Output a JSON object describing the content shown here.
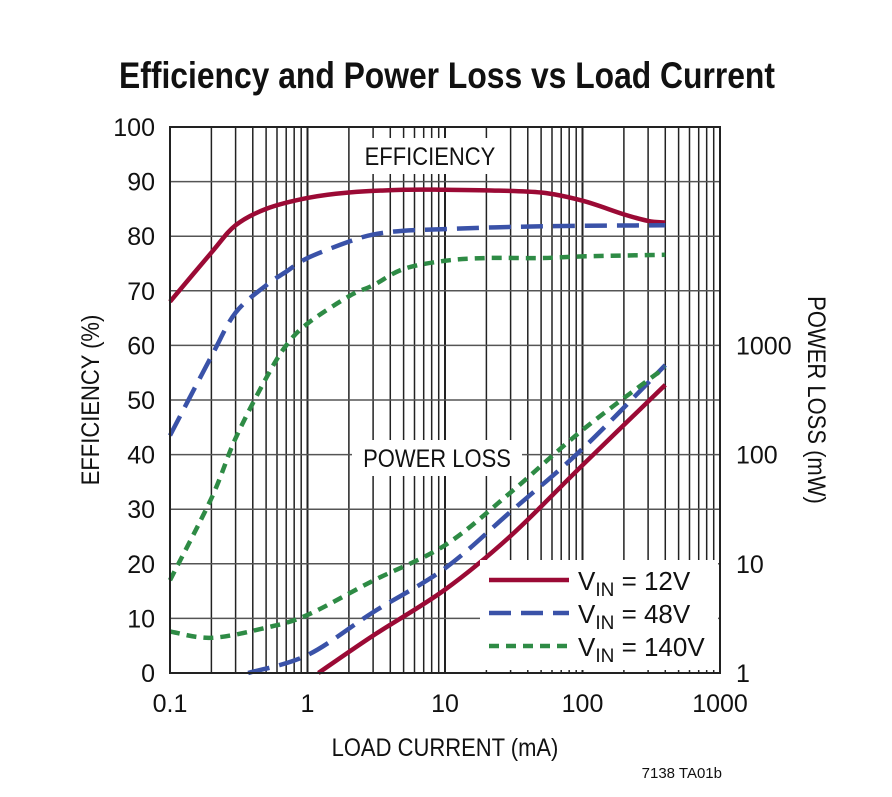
{
  "chart_data": {
    "type": "line",
    "title": "Efficiency and Power Loss vs Load Current",
    "xlabel": "LOAD CURRENT (mA)",
    "ylabel": "EFFICIENCY (%)",
    "y2label": "POWER LOSS (mW)",
    "xscale": "log",
    "xlim": [
      0.1,
      1000
    ],
    "xticks": [
      "0.1",
      "1",
      "10",
      "100",
      "1000"
    ],
    "ylim": [
      0,
      100
    ],
    "yticks": [
      "0",
      "10",
      "20",
      "30",
      "40",
      "50",
      "60",
      "70",
      "80",
      "90",
      "100"
    ],
    "y2scale": "log",
    "y2lim": [
      1,
      100000
    ],
    "y2ticks": [
      "1",
      "10",
      "100",
      "1000"
    ],
    "grid": true,
    "annotations": {
      "efficiency": "EFFICIENCY",
      "power_loss": "POWER LOSS",
      "figure_id": "7138 TA01b"
    },
    "legend_position": "bottom-right",
    "series": [
      {
        "name": "VIN = 12V",
        "sub": "IN",
        "lead": "V",
        "tail": " = 12V",
        "color": "#9b0a35",
        "dash": "none",
        "efficiency": [
          [
            0.1,
            68
          ],
          [
            0.2,
            77
          ],
          [
            0.3,
            82
          ],
          [
            0.5,
            85
          ],
          [
            1,
            87
          ],
          [
            2,
            88
          ],
          [
            5,
            88.5
          ],
          [
            10,
            88.5
          ],
          [
            20,
            88.4
          ],
          [
            50,
            88
          ],
          [
            100,
            86.5
          ],
          [
            200,
            84
          ],
          [
            300,
            82.8
          ],
          [
            400,
            82.5
          ]
        ],
        "power_loss": [
          [
            1.2,
            1
          ],
          [
            3,
            2.2
          ],
          [
            10,
            5.8
          ],
          [
            30,
            18
          ],
          [
            100,
            80
          ],
          [
            400,
            435
          ]
        ]
      },
      {
        "name": "VIN = 48V",
        "sub": "IN",
        "lead": "V",
        "tail": " = 48V",
        "color": "#3a52a8",
        "dash": "22 10",
        "efficiency": [
          [
            0.1,
            43.5
          ],
          [
            0.2,
            58
          ],
          [
            0.3,
            66
          ],
          [
            0.5,
            71
          ],
          [
            0.7,
            73.5
          ],
          [
            1,
            76
          ],
          [
            2,
            79
          ],
          [
            3,
            80.3
          ],
          [
            5,
            81
          ],
          [
            10,
            81.3
          ],
          [
            30,
            81.7
          ],
          [
            100,
            81.9
          ],
          [
            400,
            82
          ]
        ],
        "power_loss": [
          [
            0.37,
            1
          ],
          [
            1,
            1.46
          ],
          [
            3,
            3.6
          ],
          [
            10,
            9.1
          ],
          [
            30,
            30
          ],
          [
            100,
            113
          ],
          [
            400,
            660
          ]
        ]
      },
      {
        "name": "VIN = 140V",
        "sub": "IN",
        "lead": "V",
        "tail": " = 140V",
        "color": "#2e8b45",
        "dash": "10 7",
        "efficiency": [
          [
            0.1,
            17
          ],
          [
            0.2,
            32
          ],
          [
            0.3,
            43
          ],
          [
            0.5,
            54
          ],
          [
            0.7,
            60
          ],
          [
            1,
            64
          ],
          [
            2,
            69
          ],
          [
            3,
            71
          ],
          [
            5,
            74
          ],
          [
            10,
            75.5
          ],
          [
            20,
            76
          ],
          [
            50,
            76
          ],
          [
            100,
            76.3
          ],
          [
            400,
            76.6
          ]
        ],
        "power_loss": [
          [
            0.1,
            2.4
          ],
          [
            0.2,
            2.1
          ],
          [
            0.5,
            2.6
          ],
          [
            1,
            3.4
          ],
          [
            3,
            7
          ],
          [
            10,
            14.8
          ],
          [
            30,
            45
          ],
          [
            100,
            168
          ],
          [
            400,
            630
          ]
        ]
      }
    ]
  }
}
